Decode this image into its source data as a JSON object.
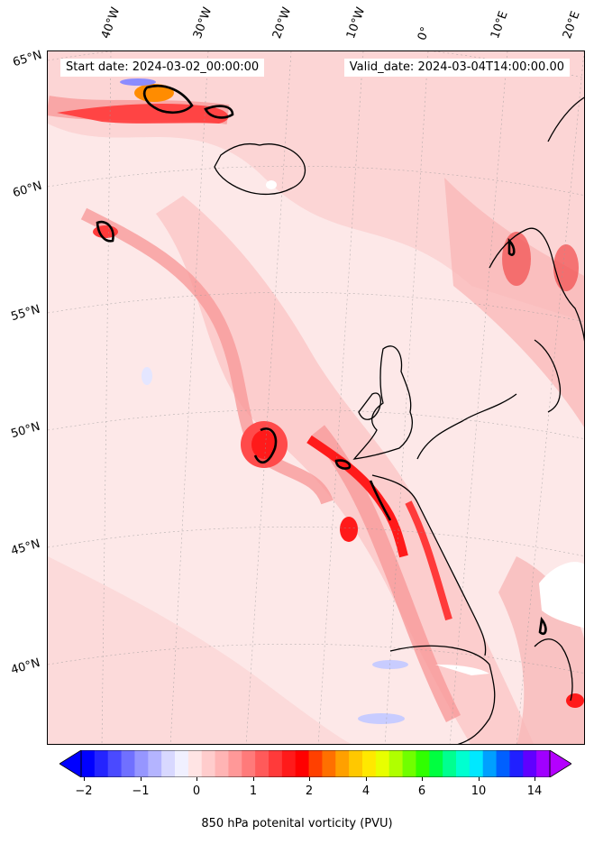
{
  "map": {
    "header_start": "Start date: 2024-03-02_00:00:00",
    "header_valid": "Valid_date: 2024-03-04T14:00:00.00",
    "lon_labels": [
      "40°W",
      "30°W",
      "20°W",
      "10°W",
      "0°",
      "10°E",
      "20°E"
    ],
    "lat_labels": [
      "65°N",
      "60°N",
      "55°N",
      "50°N",
      "45°N",
      "40°N"
    ],
    "colors": {
      "background_low": "#fde8e8",
      "pink_light": "#fbc8c8",
      "pink_mid": "#f79a9a",
      "red_mid": "#f25a5a",
      "red_strong": "#ff1a1a",
      "orange": "#ff8c00",
      "negative_blue": "#c8ccff",
      "coast": "#000000"
    }
  },
  "colorbar": {
    "label": "850 hPa potenital vorticity (PVU)",
    "tick_labels": [
      "−2",
      "−1",
      "0",
      "1",
      "2",
      "4",
      "6",
      "10",
      "14"
    ],
    "colors": [
      "#0000ff",
      "#2424ff",
      "#4a4aff",
      "#7070ff",
      "#9696ff",
      "#b4b4ff",
      "#d8d8ff",
      "#f0f0ff",
      "#ffe4e4",
      "#ffcccc",
      "#ffb4b4",
      "#ff9898",
      "#ff7a7a",
      "#ff5a5a",
      "#ff3a3a",
      "#ff1a1a",
      "#ff0000",
      "#ff4000",
      "#ff7000",
      "#ffa000",
      "#ffc800",
      "#ffe800",
      "#e8ff00",
      "#b0ff00",
      "#70ff00",
      "#30ff00",
      "#00ff40",
      "#00ff90",
      "#00ffd0",
      "#00e8ff",
      "#00a0ff",
      "#0060ff",
      "#2020ff",
      "#6000ff",
      "#a000ff"
    ]
  }
}
